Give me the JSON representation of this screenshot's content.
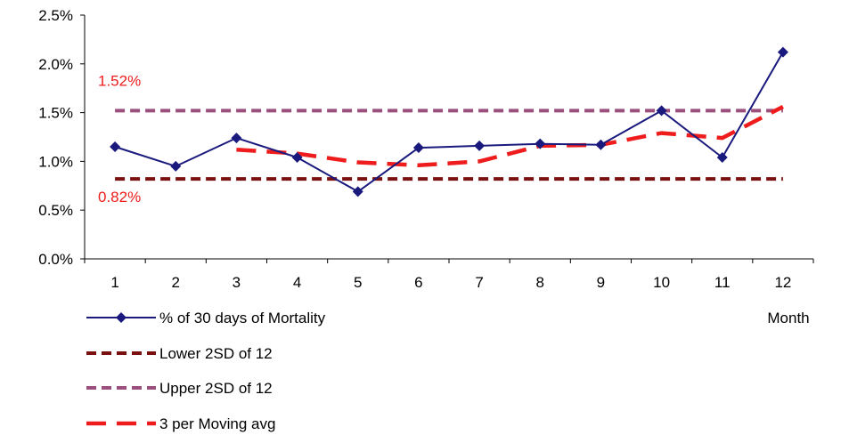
{
  "chart_data": {
    "type": "line",
    "categories": [
      "1",
      "2",
      "3",
      "4",
      "5",
      "6",
      "7",
      "8",
      "9",
      "10",
      "11",
      "12"
    ],
    "xlabel": "Month",
    "ylabel": "",
    "ylim": [
      0,
      0.025
    ],
    "yticks": [
      "0.0%",
      "0.5%",
      "1.0%",
      "1.5%",
      "2.0%",
      "2.5%"
    ],
    "series": [
      {
        "name": "% of 30 days of Mortality",
        "values": [
          0.0115,
          0.0095,
          0.0124,
          0.0104,
          0.0069,
          0.0114,
          0.0116,
          0.0118,
          0.0117,
          0.0152,
          0.0104,
          0.0212
        ],
        "color": "#1a1a7e",
        "style": "solid-diamond"
      },
      {
        "name": "Lower 2SD of 12",
        "values": [
          0.0082,
          0.0082,
          0.0082,
          0.0082,
          0.0082,
          0.0082,
          0.0082,
          0.0082,
          0.0082,
          0.0082,
          0.0082,
          0.0082
        ],
        "color": "#7b1010",
        "style": "dashed"
      },
      {
        "name": "Upper 2SD of 12",
        "values": [
          0.0152,
          0.0152,
          0.0152,
          0.0152,
          0.0152,
          0.0152,
          0.0152,
          0.0152,
          0.0152,
          0.0152,
          0.0152,
          0.0152
        ],
        "color": "#9b4f7d",
        "style": "dashed"
      },
      {
        "name": "3 per Moving avg",
        "values": [
          null,
          null,
          0.0112,
          0.0108,
          0.0099,
          0.0096,
          0.01,
          0.0116,
          0.0117,
          0.0129,
          0.0124,
          0.0156
        ],
        "color": "#ee1c1c",
        "style": "long-dashed"
      }
    ],
    "annotations": [
      {
        "text": "1.52%",
        "value": 0.0152,
        "color": "#ee1c1c"
      },
      {
        "text": "0.82%",
        "value": 0.0082,
        "color": "#ee1c1c"
      }
    ],
    "legend": "bottom-left",
    "grid": false
  }
}
